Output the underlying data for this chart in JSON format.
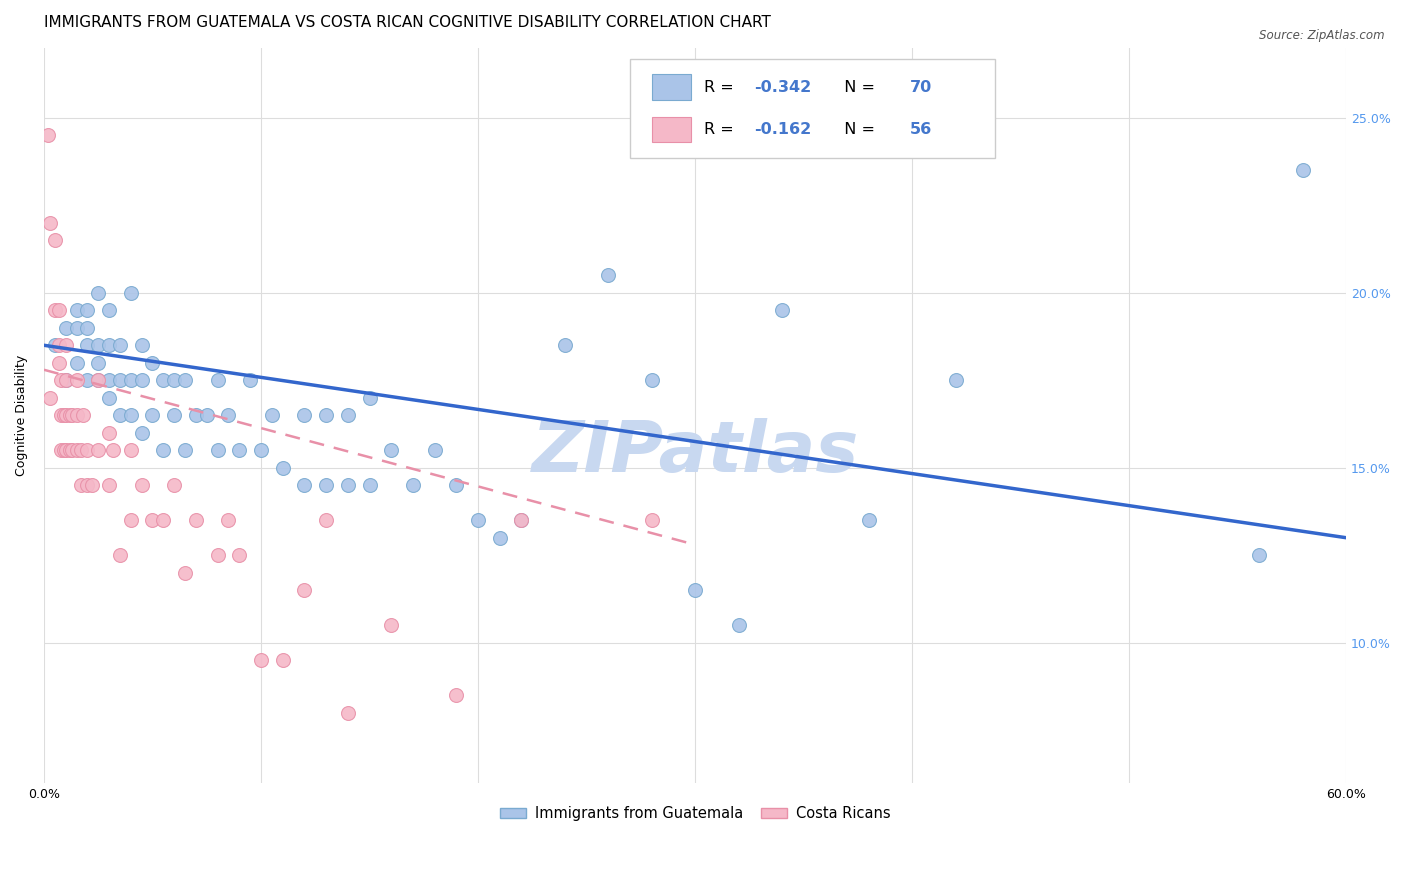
{
  "title": "IMMIGRANTS FROM GUATEMALA VS COSTA RICAN COGNITIVE DISABILITY CORRELATION CHART",
  "source": "Source: ZipAtlas.com",
  "ylabel": "Cognitive Disability",
  "ytick_labels": [
    "10.0%",
    "15.0%",
    "20.0%",
    "25.0%"
  ],
  "ytick_values": [
    0.1,
    0.15,
    0.2,
    0.25
  ],
  "xlim": [
    0.0,
    0.6
  ],
  "ylim": [
    0.06,
    0.27
  ],
  "legend_blue_r": "-0.342",
  "legend_blue_n": "70",
  "legend_pink_r": "-0.162",
  "legend_pink_n": "56",
  "legend_label_blue": "Immigrants from Guatemala",
  "legend_label_pink": "Costa Ricans",
  "blue_scatter_x": [
    0.005,
    0.01,
    0.01,
    0.015,
    0.015,
    0.015,
    0.02,
    0.02,
    0.02,
    0.02,
    0.025,
    0.025,
    0.025,
    0.025,
    0.03,
    0.03,
    0.03,
    0.03,
    0.035,
    0.035,
    0.035,
    0.04,
    0.04,
    0.04,
    0.045,
    0.045,
    0.045,
    0.05,
    0.05,
    0.055,
    0.055,
    0.06,
    0.06,
    0.065,
    0.065,
    0.07,
    0.075,
    0.08,
    0.08,
    0.085,
    0.09,
    0.095,
    0.1,
    0.105,
    0.11,
    0.12,
    0.12,
    0.13,
    0.13,
    0.14,
    0.14,
    0.15,
    0.15,
    0.16,
    0.17,
    0.18,
    0.19,
    0.2,
    0.21,
    0.22,
    0.24,
    0.26,
    0.28,
    0.3,
    0.32,
    0.34,
    0.38,
    0.42,
    0.56,
    0.58
  ],
  "blue_scatter_y": [
    0.185,
    0.175,
    0.19,
    0.18,
    0.19,
    0.195,
    0.175,
    0.185,
    0.19,
    0.195,
    0.175,
    0.18,
    0.185,
    0.2,
    0.17,
    0.175,
    0.185,
    0.195,
    0.165,
    0.175,
    0.185,
    0.165,
    0.175,
    0.2,
    0.16,
    0.175,
    0.185,
    0.165,
    0.18,
    0.155,
    0.175,
    0.165,
    0.175,
    0.155,
    0.175,
    0.165,
    0.165,
    0.155,
    0.175,
    0.165,
    0.155,
    0.175,
    0.155,
    0.165,
    0.15,
    0.145,
    0.165,
    0.145,
    0.165,
    0.145,
    0.165,
    0.145,
    0.17,
    0.155,
    0.145,
    0.155,
    0.145,
    0.135,
    0.13,
    0.135,
    0.185,
    0.205,
    0.175,
    0.115,
    0.105,
    0.195,
    0.135,
    0.175,
    0.125,
    0.235
  ],
  "pink_scatter_x": [
    0.002,
    0.003,
    0.003,
    0.005,
    0.005,
    0.007,
    0.007,
    0.007,
    0.008,
    0.008,
    0.008,
    0.009,
    0.009,
    0.01,
    0.01,
    0.01,
    0.01,
    0.012,
    0.012,
    0.013,
    0.013,
    0.015,
    0.015,
    0.015,
    0.017,
    0.017,
    0.018,
    0.02,
    0.02,
    0.022,
    0.025,
    0.025,
    0.03,
    0.03,
    0.032,
    0.035,
    0.04,
    0.04,
    0.045,
    0.05,
    0.055,
    0.06,
    0.065,
    0.07,
    0.08,
    0.085,
    0.09,
    0.1,
    0.11,
    0.12,
    0.13,
    0.14,
    0.16,
    0.19,
    0.22,
    0.28
  ],
  "pink_scatter_y": [
    0.245,
    0.17,
    0.22,
    0.215,
    0.195,
    0.18,
    0.185,
    0.195,
    0.155,
    0.165,
    0.175,
    0.155,
    0.165,
    0.155,
    0.165,
    0.175,
    0.185,
    0.155,
    0.165,
    0.155,
    0.165,
    0.155,
    0.165,
    0.175,
    0.145,
    0.155,
    0.165,
    0.145,
    0.155,
    0.145,
    0.175,
    0.155,
    0.16,
    0.145,
    0.155,
    0.125,
    0.155,
    0.135,
    0.145,
    0.135,
    0.135,
    0.145,
    0.12,
    0.135,
    0.125,
    0.135,
    0.125,
    0.095,
    0.095,
    0.115,
    0.135,
    0.08,
    0.105,
    0.085,
    0.135,
    0.135
  ],
  "blue_line_x": [
    0.0,
    0.6
  ],
  "blue_line_y": [
    0.185,
    0.13
  ],
  "pink_line_x": [
    0.0,
    0.3
  ],
  "pink_line_y": [
    0.178,
    0.128
  ],
  "watermark": "ZIPatlas",
  "watermark_color": "#c8d8f0",
  "scatter_blue_color": "#aac4e8",
  "scatter_blue_edge": "#7aaad0",
  "scatter_pink_color": "#f5b8c8",
  "scatter_pink_edge": "#e890a8",
  "line_blue_color": "#3366cc",
  "line_pink_color": "#e890a8",
  "background_color": "#ffffff",
  "grid_color": "#dddddd",
  "title_fontsize": 11,
  "axis_label_fontsize": 9,
  "tick_fontsize": 9,
  "legend_text_color": "#4477cc",
  "right_ytick_color": "#5599ee"
}
